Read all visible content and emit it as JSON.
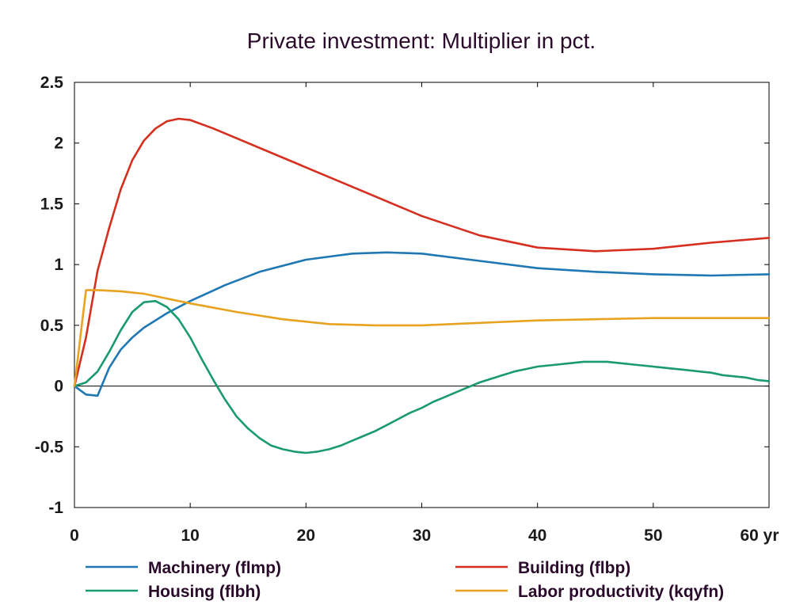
{
  "chart_data": {
    "type": "line",
    "title": "Private investment: Multiplier in pct.",
    "xlabel": "",
    "ylabel": "",
    "xlim": [
      0,
      60
    ],
    "ylim": [
      -1,
      2.5
    ],
    "x_ticks": [
      0,
      10,
      20,
      30,
      40,
      50,
      60
    ],
    "x_tick_labels": [
      "0",
      "10",
      "20",
      "30",
      "40",
      "50",
      "60 yr"
    ],
    "y_ticks": [
      -1,
      -0.5,
      0,
      0.5,
      1,
      1.5,
      2,
      2.5
    ],
    "y_tick_labels": [
      "-1",
      "-0.5",
      "0",
      "0.5",
      "1",
      "1.5",
      "2",
      "2.5"
    ],
    "grid": false,
    "zero_line": true,
    "legend_position": "bottom",
    "series": [
      {
        "name": "Machinery (flmp)",
        "color": "#1f77b4",
        "x": [
          0,
          1,
          2,
          3,
          4,
          5,
          6,
          8,
          10,
          13,
          16,
          20,
          24,
          27,
          30,
          35,
          40,
          45,
          50,
          55,
          60
        ],
        "y": [
          0,
          -0.07,
          -0.08,
          0.15,
          0.3,
          0.4,
          0.48,
          0.6,
          0.7,
          0.83,
          0.94,
          1.04,
          1.09,
          1.1,
          1.09,
          1.03,
          0.97,
          0.94,
          0.92,
          0.91,
          0.92
        ]
      },
      {
        "name": "Building (flbp)",
        "color": "#d62f1f",
        "x": [
          0,
          1,
          2,
          3,
          4,
          5,
          6,
          7,
          8,
          9,
          10,
          12,
          14,
          17,
          20,
          25,
          30,
          35,
          40,
          45,
          50,
          55,
          60
        ],
        "y": [
          0,
          0.4,
          0.95,
          1.3,
          1.62,
          1.86,
          2.02,
          2.12,
          2.18,
          2.2,
          2.19,
          2.12,
          2.04,
          1.92,
          1.8,
          1.6,
          1.4,
          1.24,
          1.14,
          1.11,
          1.13,
          1.18,
          1.22
        ]
      },
      {
        "name": "Housing (flbh)",
        "color": "#1a9a72",
        "x": [
          0,
          1,
          2,
          3,
          4,
          5,
          6,
          7,
          8,
          9,
          10,
          11,
          12,
          13,
          14,
          15,
          16,
          17,
          18,
          19,
          20,
          21,
          22,
          23,
          24,
          25,
          26,
          27,
          28,
          29,
          30,
          31,
          32,
          33,
          34,
          35,
          36,
          37,
          38,
          39,
          40,
          41,
          42,
          43,
          44,
          45,
          46,
          47,
          48,
          49,
          50,
          51,
          52,
          53,
          54,
          55,
          56,
          57,
          58,
          59,
          60
        ],
        "y": [
          0,
          0.03,
          0.12,
          0.28,
          0.46,
          0.61,
          0.69,
          0.7,
          0.65,
          0.55,
          0.4,
          0.22,
          0.05,
          -0.11,
          -0.25,
          -0.35,
          -0.43,
          -0.49,
          -0.52,
          -0.54,
          -0.55,
          -0.54,
          -0.52,
          -0.49,
          -0.45,
          -0.41,
          -0.37,
          -0.32,
          -0.27,
          -0.22,
          -0.18,
          -0.13,
          -0.09,
          -0.05,
          -0.01,
          0.03,
          0.06,
          0.09,
          0.12,
          0.14,
          0.16,
          0.17,
          0.18,
          0.19,
          0.2,
          0.2,
          0.2,
          0.19,
          0.18,
          0.17,
          0.16,
          0.15,
          0.14,
          0.13,
          0.12,
          0.11,
          0.09,
          0.08,
          0.07,
          0.05,
          0.04
        ]
      },
      {
        "name": "Labor productivity (kqyfn)",
        "color": "#e8a21f",
        "x": [
          0,
          1,
          2,
          4,
          6,
          8,
          10,
          14,
          18,
          22,
          26,
          30,
          35,
          40,
          45,
          50,
          55,
          60
        ],
        "y": [
          0,
          0.79,
          0.79,
          0.78,
          0.76,
          0.72,
          0.68,
          0.61,
          0.55,
          0.51,
          0.5,
          0.5,
          0.52,
          0.54,
          0.55,
          0.56,
          0.56,
          0.56
        ]
      }
    ]
  }
}
